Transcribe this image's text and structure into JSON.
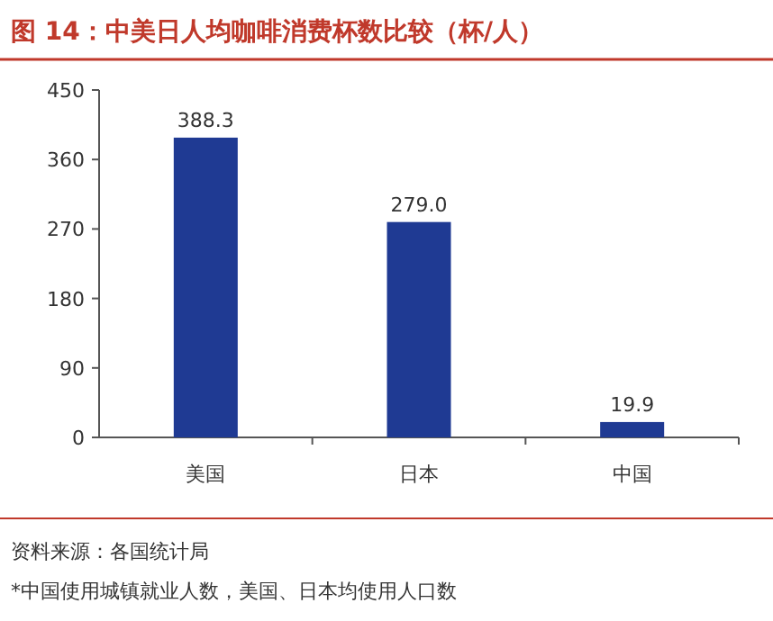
{
  "chart_data": {
    "type": "bar",
    "title": "图 14：中美日人均咖啡消费杯数比较（杯/人）",
    "categories": [
      "美国",
      "日本",
      "中国"
    ],
    "values": [
      388.3,
      279.0,
      19.9
    ],
    "value_labels": [
      "388.3",
      "279.0",
      "19.9"
    ],
    "color": "#1f3a93",
    "ylim": [
      0,
      450
    ],
    "yticks": [
      0,
      90,
      180,
      270,
      360,
      450
    ],
    "grid": false,
    "annotations": [
      "资料来源：各国统计局",
      "*中国使用城镇就业人数，美国、日本均使用人口数"
    ]
  }
}
